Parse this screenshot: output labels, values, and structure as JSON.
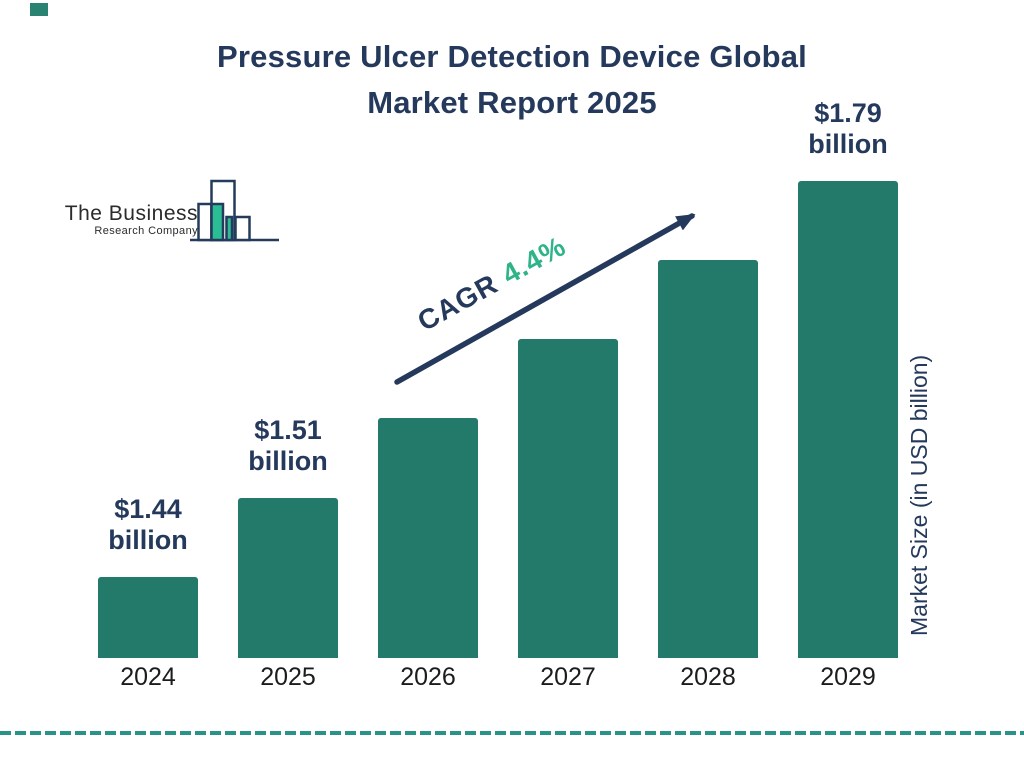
{
  "title": {
    "line1": "Pressure Ulcer Detection Device Global",
    "line2": "Market Report 2025"
  },
  "logo": {
    "name_line1": "The Business",
    "name_line2": "Research Company"
  },
  "cagr": {
    "prefix": "CAGR",
    "value": "4.4%"
  },
  "y_axis_label": "Market Size (in USD billion)",
  "colors": {
    "bar": "#237a6a",
    "navy": "#24395b",
    "accent_green": "#2eb488",
    "logo_teal_fill": "#2bbe94",
    "dashed_line": "#2a9389"
  },
  "chart_data": {
    "type": "bar",
    "title": "Pressure Ulcer Detection Device Global Market Report 2025",
    "ylabel": "Market Size (in USD billion)",
    "cagr_annotation": "CAGR 4.4%",
    "categories": [
      "2024",
      "2025",
      "2026",
      "2027",
      "2028",
      "2029"
    ],
    "values": [
      1.44,
      1.51,
      1.58,
      1.65,
      1.72,
      1.79
    ],
    "unit": "USD billion",
    "bar_labels": [
      [
        "$1.44",
        "billion"
      ],
      [
        "$1.51",
        "billion"
      ],
      null,
      null,
      null,
      [
        "$1.79",
        "billion"
      ]
    ],
    "bar_color": "#237a6a",
    "legend": "none",
    "grid": "off",
    "y_axis_ticks": "none"
  }
}
